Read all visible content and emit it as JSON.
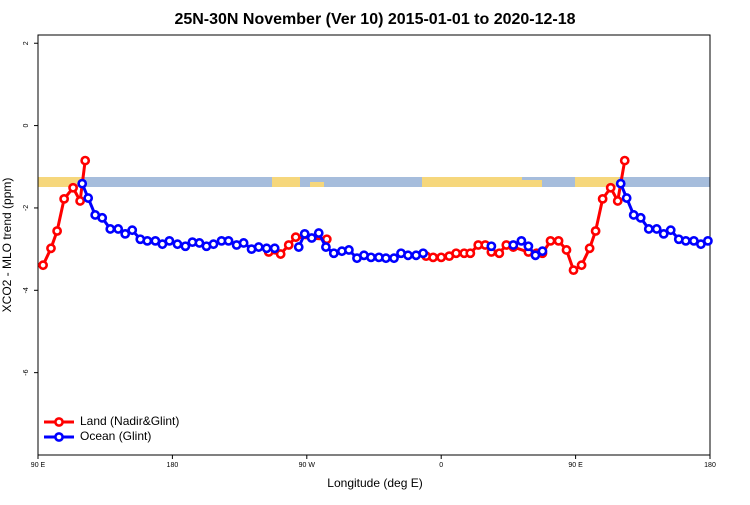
{
  "chart_data": {
    "type": "line",
    "title": "25N-30N November (Ver 10)   2015-01-01 to 2020-12-18",
    "x_label": "Longitude (deg E)",
    "y_label": "XCO2 - MLO trend (ppm)",
    "xlim": [
      90,
      540
    ],
    "ylim": [
      -8,
      2.2
    ],
    "xticks": [
      {
        "value": 90,
        "label": "90 E"
      },
      180,
      {
        "value": 270,
        "label": "90 W"
      },
      {
        "value": 360,
        "label": "0"
      },
      {
        "value": 450,
        "label": "90 E"
      },
      {
        "value": 540,
        "label": "180"
      }
    ],
    "yticks": [
      2,
      0,
      -2,
      -4,
      -6
    ],
    "legend": "bottom-left",
    "series": [
      {
        "name": "Land (Nadir&Glint)",
        "color": "#ff0000",
        "x": [
          93.4,
          98.7,
          102.8,
          107.5,
          113.5,
          118.2,
          121.6,
          null,
          244.5,
          252.5,
          257.9,
          262.6,
          283.4,
          null,
          349.9,
          354.6,
          360,
          365.4,
          370,
          375.4,
          379.5,
          384.8,
          389.5,
          393.6,
          398.9,
          403.6,
          408.3,
          418.4,
          423.8,
          427.8,
          433.2,
          438.6,
          443.9,
          448.6,
          454,
          459.4,
          463.4,
          468.1,
          473.5,
          478.2,
          482.9
        ],
        "values": [
          -3.39,
          -2.98,
          -2.56,
          -1.78,
          -1.51,
          -1.83,
          -0.85,
          null,
          -3.07,
          -3.12,
          -2.9,
          -2.71,
          -2.76,
          null,
          -3.17,
          -3.2,
          -3.2,
          -3.17,
          -3.1,
          -3.1,
          -3.1,
          -2.9,
          -2.9,
          -3.07,
          -3.1,
          -2.9,
          -2.95,
          -3.07,
          -3.1,
          -3.1,
          -2.8,
          -2.8,
          -3.02,
          -3.51,
          -3.39,
          -2.98,
          -2.56,
          -1.78,
          -1.51,
          -1.83,
          -0.85
        ]
      },
      {
        "name": "Ocean (Glint)",
        "color": "#0000ff",
        "x": [
          119.6,
          123.6,
          128.3,
          133,
          138.4,
          143.7,
          148.4,
          153.1,
          158.5,
          163.2,
          168.6,
          173.3,
          178,
          183.4,
          188.7,
          193.4,
          198.1,
          202.8,
          207.5,
          212.9,
          217.6,
          223,
          227.7,
          233,
          237.8,
          243.1,
          248.5,
          null,
          264.6,
          268.6,
          273.3,
          278,
          282.8,
          288.1,
          293.5,
          298.2,
          303.6,
          308.3,
          313,
          318.3,
          323,
          328.4,
          333.1,
          337.8,
          343.2,
          347.9,
          null,
          393.6,
          null,
          408.3,
          413.7,
          418.4,
          423.1,
          427.8,
          null,
          480.2,
          484.2,
          488.9,
          493.6,
          499,
          504.3,
          509,
          513.7,
          519.1,
          523.8,
          529.2,
          533.9,
          538.6
        ],
        "values": [
          -1.41,
          -1.76,
          -2.17,
          -2.24,
          -2.51,
          -2.51,
          -2.63,
          -2.54,
          -2.76,
          -2.8,
          -2.8,
          -2.88,
          -2.8,
          -2.88,
          -2.93,
          -2.83,
          -2.85,
          -2.93,
          -2.88,
          -2.8,
          -2.8,
          -2.9,
          -2.85,
          -3,
          -2.95,
          -2.98,
          -2.98,
          null,
          -2.95,
          -2.63,
          -2.73,
          -2.61,
          -2.95,
          -3.1,
          -3.05,
          -3.02,
          -3.22,
          -3.15,
          -3.2,
          -3.2,
          -3.22,
          -3.22,
          -3.1,
          -3.15,
          -3.15,
          -3.1,
          null,
          -2.93,
          null,
          -2.9,
          -2.8,
          -2.93,
          -3.15,
          -3.05,
          null,
          -1.41,
          -1.76,
          -2.17,
          -2.24,
          -2.51,
          -2.51,
          -2.63,
          -2.54,
          -2.76,
          -2.8,
          -2.8,
          -2.88,
          -2.8
        ]
      }
    ]
  }
}
